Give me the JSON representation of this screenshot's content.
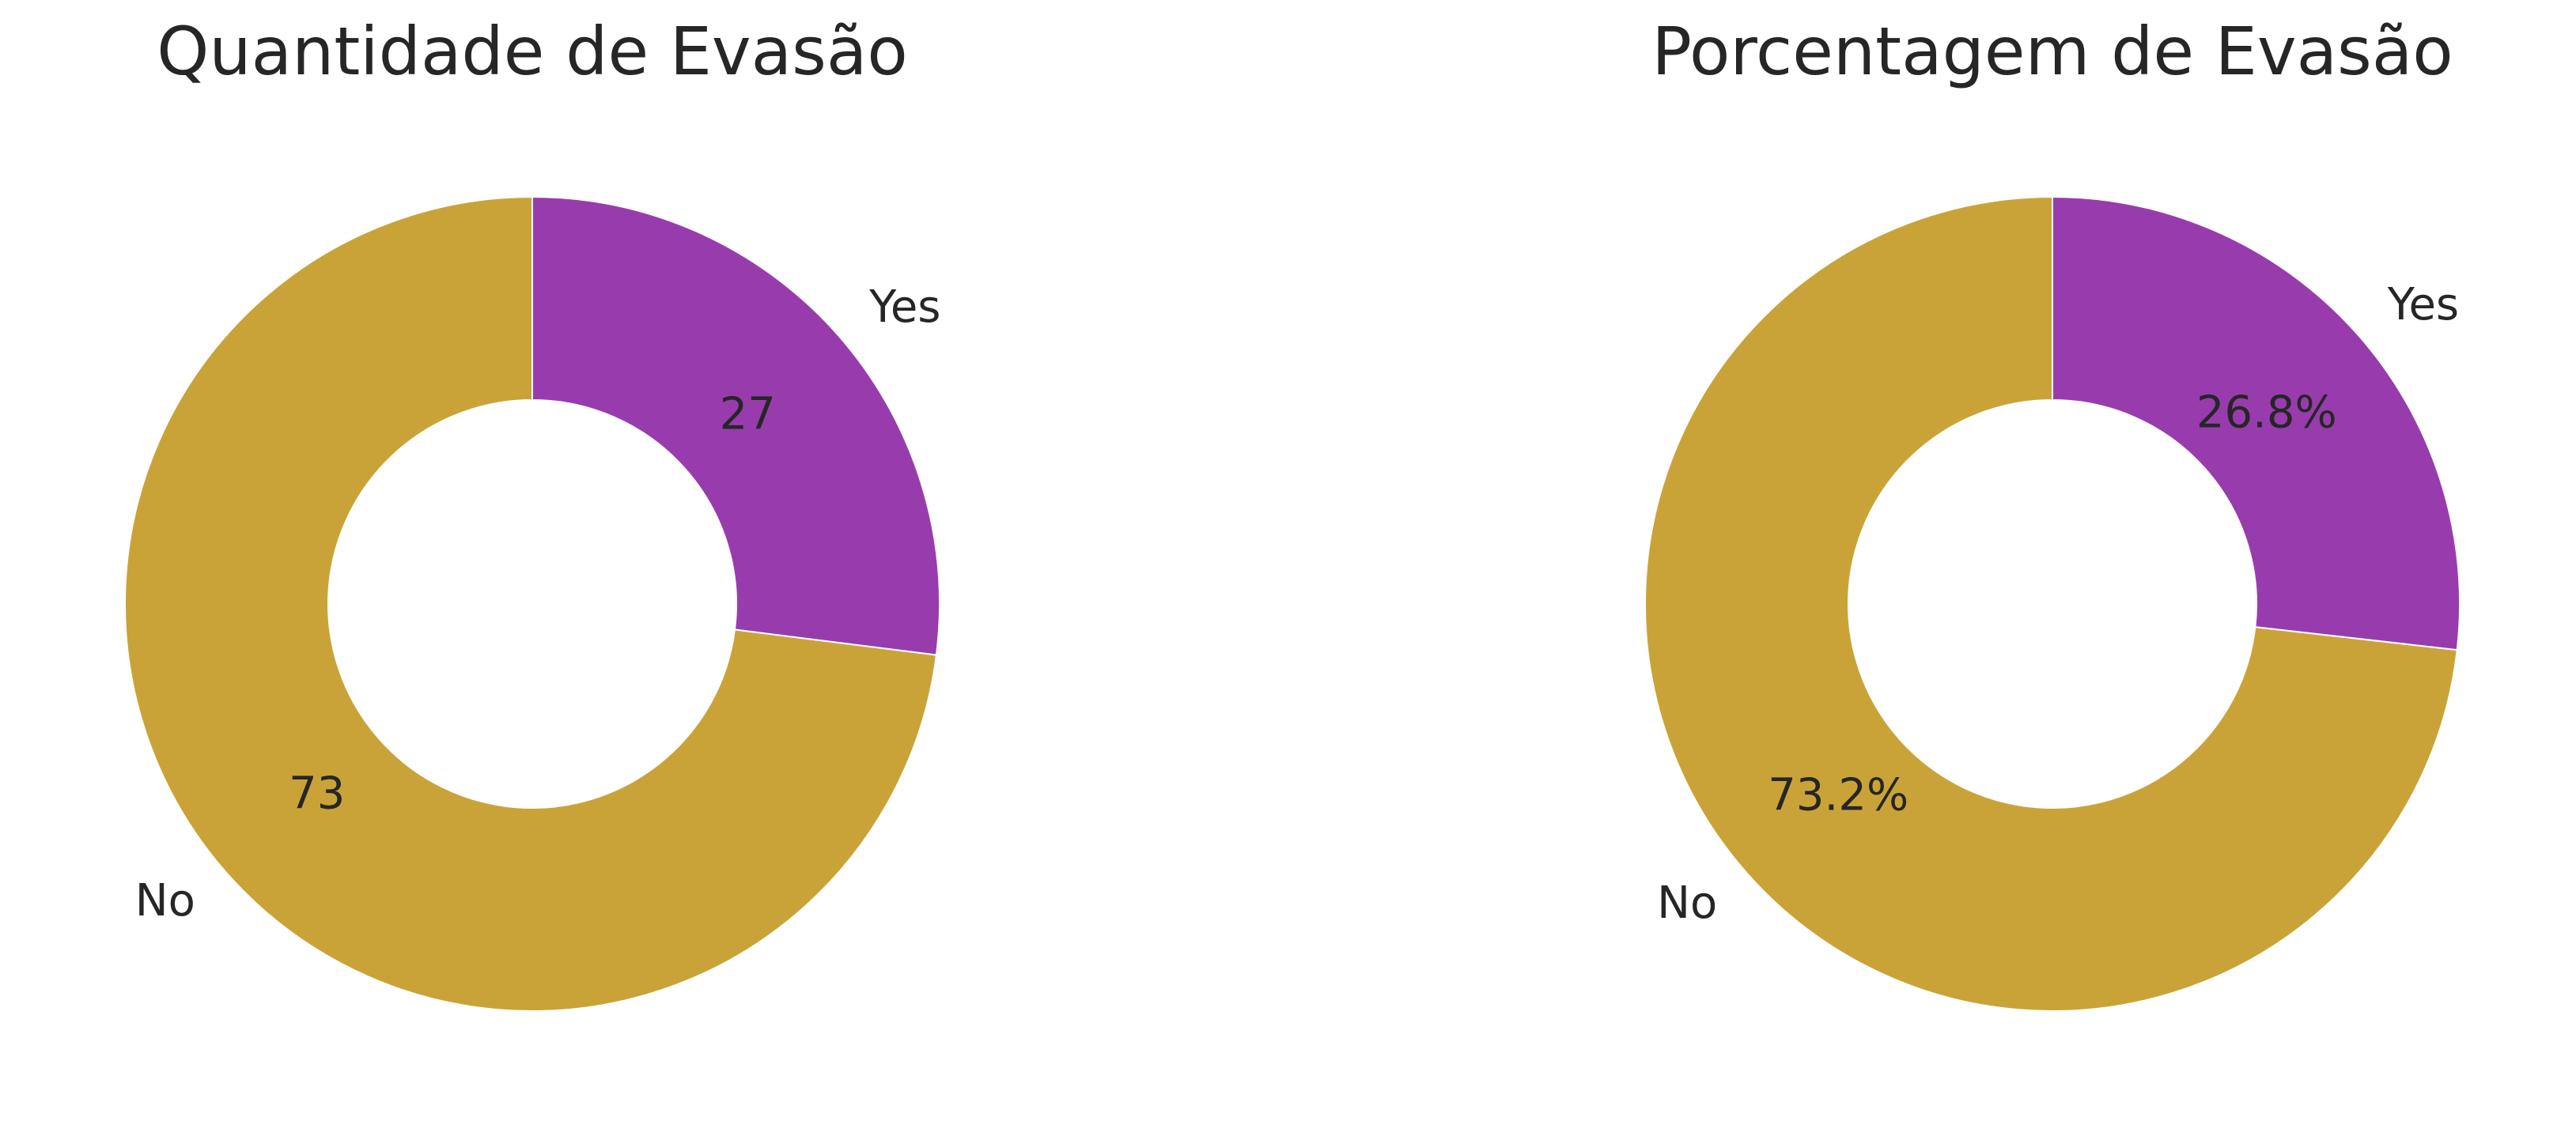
{
  "chart_data": [
    {
      "type": "pie",
      "style": "donut",
      "title": "Quantidade de Evasão",
      "categories": [
        "No",
        "Yes"
      ],
      "values": [
        73,
        27
      ],
      "value_labels": [
        "73",
        "27"
      ],
      "colors": [
        "#CAA338",
        "#983CAD"
      ]
    },
    {
      "type": "pie",
      "style": "donut",
      "title": "Porcentagem de Evasão",
      "categories": [
        "No",
        "Yes"
      ],
      "values": [
        73.2,
        26.8
      ],
      "value_labels": [
        "73.2%",
        "26.8%"
      ],
      "colors": [
        "#CAA338",
        "#983CAD"
      ]
    }
  ]
}
